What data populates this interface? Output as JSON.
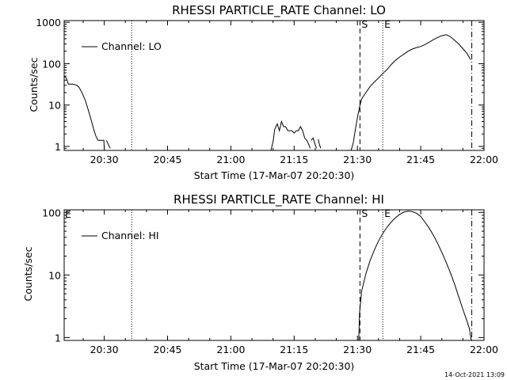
{
  "chart_data": [
    {
      "type": "line",
      "title": "RHESSI PARTICLE_RATE Channel: LO",
      "xlabel": "Start Time (17-Mar-07 20:20:30)",
      "ylabel": "Counts/sec",
      "x_unit": "minutes",
      "x_ticks": [
        {
          "t": 30,
          "label": "20:30"
        },
        {
          "t": 45,
          "label": "20:45"
        },
        {
          "t": 60,
          "label": "21:00"
        },
        {
          "t": 75,
          "label": "21:15"
        },
        {
          "t": 90,
          "label": "21:30"
        },
        {
          "t": 105,
          "label": "21:45"
        },
        {
          "t": 120,
          "label": "22:00"
        }
      ],
      "x_range": [
        20.5,
        120
      ],
      "y_log": true,
      "y_range": [
        0.8,
        1100
      ],
      "y_ticks": [
        {
          "v": 1,
          "label": "1"
        },
        {
          "v": 10,
          "label": "10"
        },
        {
          "v": 100,
          "label": "100"
        },
        {
          "v": 1000,
          "label": "1000"
        }
      ],
      "legend": "top-left",
      "series": [
        {
          "name": "Channel: LO",
          "segments": [
            [
              [
                20.5,
                50
              ],
              [
                21,
                45
              ],
              [
                21.5,
                32
              ],
              [
                22.5,
                32
              ],
              [
                23.5,
                30
              ],
              [
                24,
                27
              ],
              [
                24.5,
                22
              ],
              [
                25,
                17
              ],
              [
                25.5,
                13
              ],
              [
                26,
                9
              ],
              [
                26.5,
                6
              ],
              [
                27,
                4
              ],
              [
                27.5,
                2.6
              ],
              [
                28,
                1.8
              ],
              [
                28.5,
                1.4
              ],
              [
                29,
                1.4
              ],
              [
                29.5,
                1.4
              ],
              [
                29.9,
                1.4
              ],
              [
                30,
                0.9
              ]
            ],
            [
              [
                30.5,
                1.4
              ],
              [
                31,
                1.1
              ],
              [
                31.4,
                0.9
              ]
            ],
            [
              [
                69.5,
                0.8
              ],
              [
                70,
                1.3
              ],
              [
                70.4,
                2.6
              ],
              [
                71,
                3.5
              ],
              [
                71.5,
                2.4
              ],
              [
                72,
                4
              ],
              [
                72.5,
                3
              ],
              [
                73,
                3
              ],
              [
                73.5,
                2.4
              ],
              [
                74,
                2.4
              ],
              [
                74.5,
                2.4
              ],
              [
                75,
                2.1
              ],
              [
                75.5,
                2.4
              ],
              [
                76,
                2.4
              ],
              [
                76.5,
                3
              ],
              [
                77,
                2.4
              ],
              [
                77.5,
                1.6
              ],
              [
                78,
                1.4
              ],
              [
                78.5,
                1.1
              ],
              [
                78.8,
                0.9
              ]
            ],
            [
              [
                79,
                1.4
              ],
              [
                79.5,
                1.6
              ],
              [
                80,
                1.1
              ],
              [
                80.3,
                0.9
              ]
            ],
            [
              [
                80.7,
                1.5
              ],
              [
                81,
                1.1
              ],
              [
                81.3,
                0.9
              ]
            ],
            [
              [
                88.5,
                0.8
              ],
              [
                89,
                1.2
              ],
              [
                89.5,
                2.5
              ],
              [
                90,
                5
              ],
              [
                90.5,
                9
              ],
              [
                91,
                14
              ],
              [
                92,
                20
              ],
              [
                93,
                28
              ],
              [
                94,
                36
              ],
              [
                95,
                45
              ],
              [
                96,
                58
              ],
              [
                97,
                72
              ],
              [
                98,
                95
              ],
              [
                99,
                120
              ],
              [
                100,
                145
              ],
              [
                101,
                170
              ],
              [
                102,
                200
              ],
              [
                103,
                225
              ],
              [
                104,
                245
              ],
              [
                105,
                260
              ],
              [
                106,
                290
              ],
              [
                107,
                330
              ],
              [
                108,
                380
              ],
              [
                109,
                430
              ],
              [
                110,
                475
              ],
              [
                111,
                500
              ],
              [
                111.5,
                480
              ],
              [
                112,
                450
              ],
              [
                113,
                370
              ],
              [
                114,
                300
              ],
              [
                115,
                230
              ],
              [
                116,
                175
              ],
              [
                116.8,
                125
              ]
            ]
          ]
        }
      ],
      "annotations": [
        {
          "t": 36.5,
          "style": "dotted",
          "label": ""
        },
        {
          "t": 90.6,
          "style": "dashed",
          "label": "S"
        },
        {
          "t": 96.0,
          "style": "dotted",
          "label": "E"
        },
        {
          "t": 117.1,
          "style": "dashdot",
          "label": ""
        }
      ]
    },
    {
      "type": "line",
      "title": "RHESSI PARTICLE_RATE Channel: HI",
      "xlabel": "Start Time (17-Mar-07 20:20:30)",
      "ylabel": "Counts/sec",
      "x_unit": "minutes",
      "x_ticks": [
        {
          "t": 30,
          "label": "20:30"
        },
        {
          "t": 45,
          "label": "20:45"
        },
        {
          "t": 60,
          "label": "21:00"
        },
        {
          "t": 75,
          "label": "21:15"
        },
        {
          "t": 90,
          "label": "21:30"
        },
        {
          "t": 105,
          "label": "21:45"
        },
        {
          "t": 120,
          "label": "22:00"
        }
      ],
      "x_range": [
        20.5,
        120
      ],
      "y_log": true,
      "y_range": [
        0.9,
        110
      ],
      "y_ticks": [
        {
          "v": 1,
          "label": "1"
        },
        {
          "v": 10,
          "label": "10"
        },
        {
          "v": 100,
          "label": "100"
        }
      ],
      "legend": "top-left",
      "series": [
        {
          "name": "Channel: HI",
          "segments": [
            [
              [
                90.3,
                0.9
              ],
              [
                90.5,
                2.5
              ],
              [
                91,
                5.5
              ],
              [
                92,
                10.5
              ],
              [
                93,
                17
              ],
              [
                94,
                25
              ],
              [
                95,
                35
              ],
              [
                96,
                46
              ],
              [
                97,
                58
              ],
              [
                98,
                70
              ],
              [
                99,
                82
              ],
              [
                100,
                93
              ],
              [
                101,
                101
              ],
              [
                102,
                105
              ],
              [
                103,
                103
              ],
              [
                104,
                97
              ],
              [
                105,
                86
              ],
              [
                106,
                70
              ],
              [
                107,
                56
              ],
              [
                108,
                43
              ],
              [
                109,
                32
              ],
              [
                110,
                23
              ],
              [
                111,
                16
              ],
              [
                112,
                11
              ],
              [
                113,
                7.2
              ],
              [
                114,
                4.5
              ],
              [
                115,
                2.8
              ],
              [
                116,
                1.8
              ],
              [
                116.5,
                1.4
              ],
              [
                117,
                0.9
              ]
            ]
          ]
        }
      ],
      "annotations": [
        {
          "t": 36.5,
          "style": "dotted",
          "label": ""
        },
        {
          "t": 90.6,
          "style": "dashed",
          "label": "S"
        },
        {
          "t": 96.0,
          "style": "dotted",
          "label": "E"
        },
        {
          "t": 117.1,
          "style": "dashdot",
          "label": ""
        }
      ],
      "corner_marks": [
        "E"
      ]
    }
  ],
  "footer": {
    "timestamp": "14-Oct-2021 13:09"
  }
}
